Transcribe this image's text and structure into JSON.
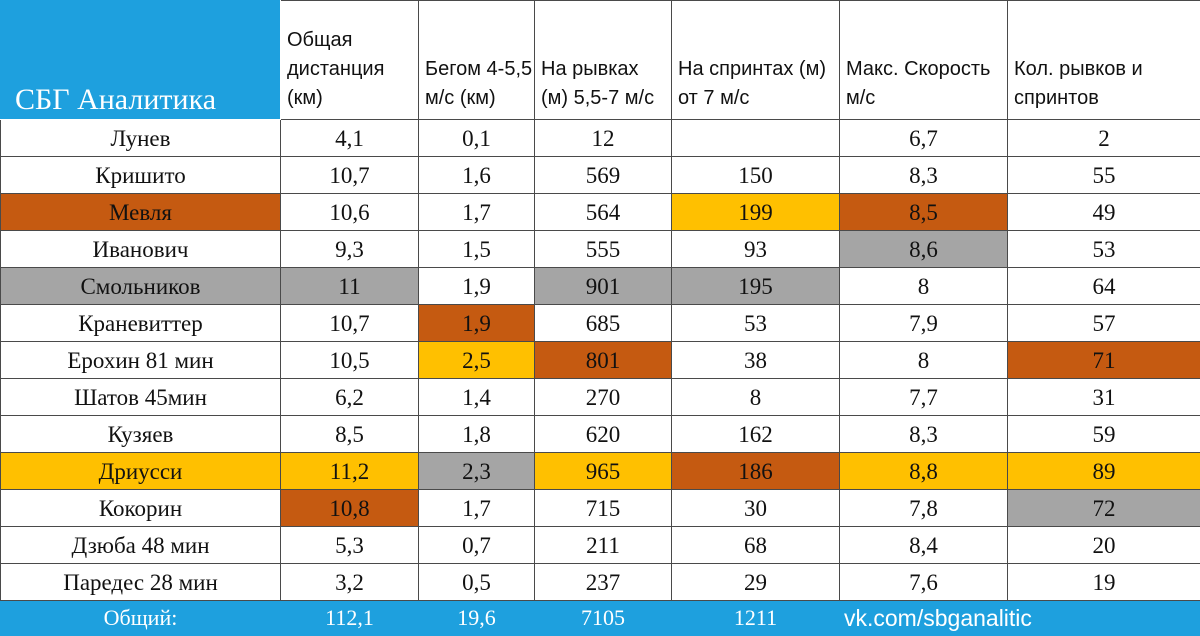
{
  "brand": "СБГ Аналитика",
  "columns": [
    "Общая дистанция (км)",
    "Бегом 4-5,5 м/с (км)",
    "На рывках (м) 5,5-7 м/с",
    "На спринтах (м) от 7 м/с",
    "Макс. Скорость м/с",
    "Кол. рывков и спринтов"
  ],
  "colors": {
    "header_blue": "#1ea0de",
    "highlight_orange": "#c55a11",
    "highlight_yellow": "#ffc000",
    "highlight_gray": "#a5a5a5"
  },
  "rows": [
    {
      "name": "Лунев",
      "values": [
        "4,1",
        "0,1",
        "12",
        "",
        "6,7",
        "2"
      ]
    },
    {
      "name": "Кришито",
      "values": [
        "10,7",
        "1,6",
        "569",
        "150",
        "8,3",
        "55"
      ]
    },
    {
      "name": "Мевля",
      "values": [
        "10,6",
        "1,7",
        "564",
        "199",
        "8,5",
        "49"
      ]
    },
    {
      "name": "Иванович",
      "values": [
        "9,3",
        "1,5",
        "555",
        "93",
        "8,6",
        "53"
      ]
    },
    {
      "name": "Смольников",
      "values": [
        "11",
        "1,9",
        "901",
        "195",
        "8",
        "64"
      ]
    },
    {
      "name": "Краневиттер",
      "values": [
        "10,7",
        "1,9",
        "685",
        "53",
        "7,9",
        "57"
      ]
    },
    {
      "name": "Ерохин 81 мин",
      "values": [
        "10,5",
        "2,5",
        "801",
        "38",
        "8",
        "71"
      ]
    },
    {
      "name": "Шатов 45мин",
      "values": [
        "6,2",
        "1,4",
        "270",
        "8",
        "7,7",
        "31"
      ]
    },
    {
      "name": "Кузяев",
      "values": [
        "8,5",
        "1,8",
        "620",
        "162",
        "8,3",
        "59"
      ]
    },
    {
      "name": "Дриусси",
      "values": [
        "11,2",
        "2,3",
        "965",
        "186",
        "8,8",
        "89"
      ]
    },
    {
      "name": "Кокорин",
      "values": [
        "10,8",
        "1,7",
        "715",
        "30",
        "7,8",
        "72"
      ]
    },
    {
      "name": "Дзюба 48 мин",
      "values": [
        "5,3",
        "0,7",
        "211",
        "68",
        "8,4",
        "20"
      ]
    },
    {
      "name": "Паредес 28 мин",
      "values": [
        "3,2",
        "0,5",
        "237",
        "29",
        "7,6",
        "19"
      ]
    }
  ],
  "footer": {
    "label": "Общий:",
    "totals": [
      "112,1",
      "19,6",
      "7105",
      "1211"
    ],
    "link": "vk.com/sbganalitic"
  }
}
